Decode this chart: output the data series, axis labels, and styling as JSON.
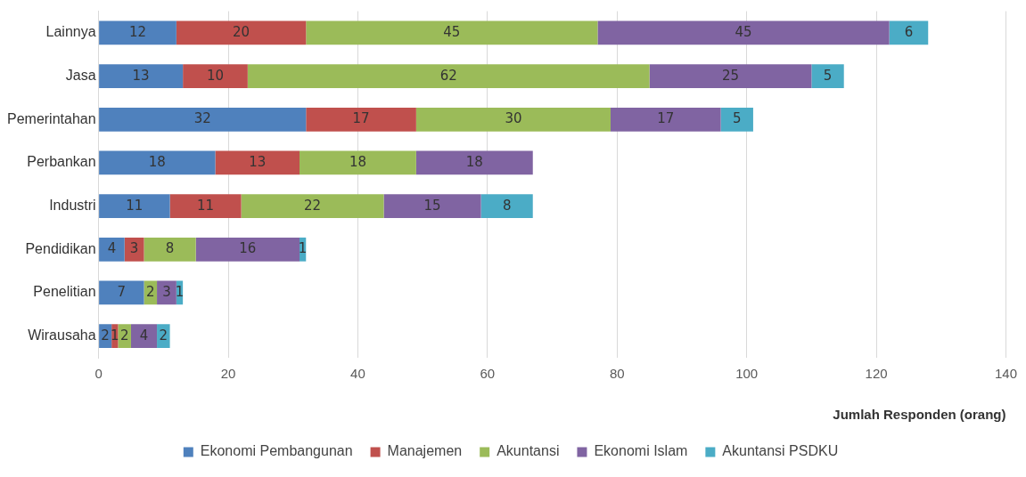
{
  "chart_data": {
    "type": "bar",
    "orientation": "horizontal",
    "stacked": true,
    "data_labels": true,
    "grid": "x",
    "legend": "bottom",
    "xlabel": "Jumlah Responden (orang)",
    "categories": [
      "Lainnya",
      "Jasa",
      "Pemerintahan",
      "Perbankan",
      "Industri",
      "Pendidikan",
      "Penelitian",
      "Wirausaha"
    ],
    "xlim": [
      0,
      140
    ],
    "xticks": [
      0,
      20,
      40,
      60,
      80,
      100,
      120,
      140
    ],
    "series": [
      {
        "name": "Ekonomi Pembangunan",
        "color": "#4f81bd",
        "values": [
          12,
          13,
          32,
          18,
          11,
          4,
          7,
          2
        ]
      },
      {
        "name": "Manajemen",
        "color": "#c0504d",
        "values": [
          20,
          10,
          17,
          13,
          11,
          3,
          null,
          1
        ]
      },
      {
        "name": "Akuntansi",
        "color": "#9bbb59",
        "values": [
          45,
          62,
          30,
          18,
          22,
          8,
          2,
          2
        ]
      },
      {
        "name": "Ekonomi Islam",
        "color": "#8064a2",
        "values": [
          45,
          25,
          17,
          18,
          15,
          16,
          3,
          4
        ]
      },
      {
        "name": "Akuntansi PSDKU",
        "color": "#4bacc6",
        "values": [
          6,
          5,
          5,
          null,
          8,
          1,
          1,
          2
        ]
      }
    ]
  }
}
